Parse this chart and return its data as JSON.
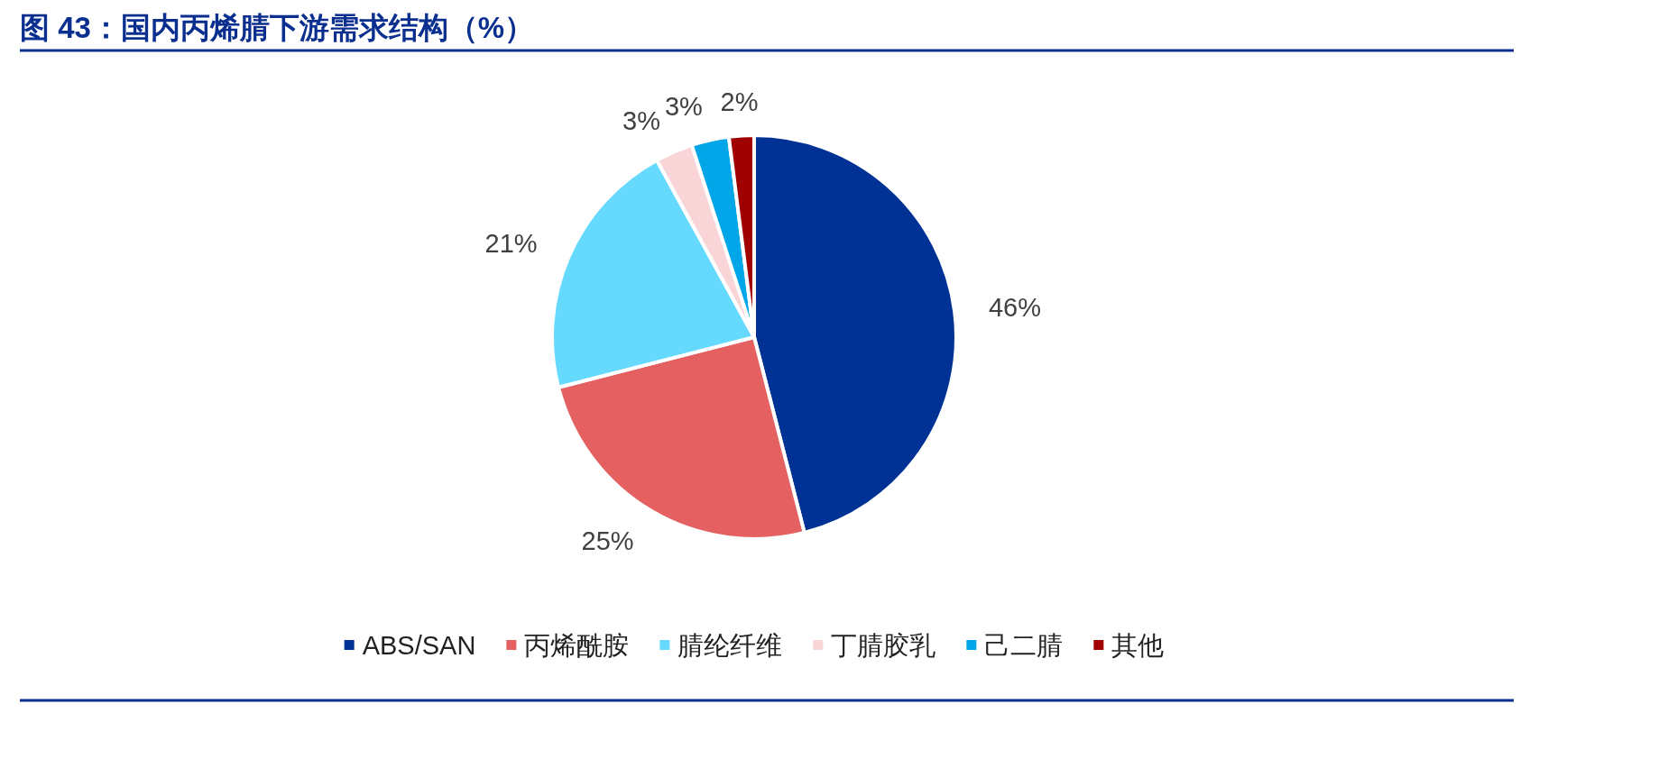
{
  "chart_data": {
    "type": "pie",
    "title": "图 43：国内丙烯腈下游需求结构（%）",
    "categories": [
      "ABS/SAN",
      "丙烯酰胺",
      "腈纶纤维",
      "丁腈胶乳",
      "己二腈",
      "其他"
    ],
    "values": [
      46,
      25,
      21,
      3,
      3,
      2
    ],
    "colors": [
      "#003296",
      "#e56060",
      "#66d9ff",
      "#f9d5d7",
      "#00a6e8",
      "#a00000"
    ],
    "value_labels": [
      "46%",
      "25%",
      "21%",
      "3%",
      "3%",
      "2%"
    ],
    "legend": "bottom"
  }
}
